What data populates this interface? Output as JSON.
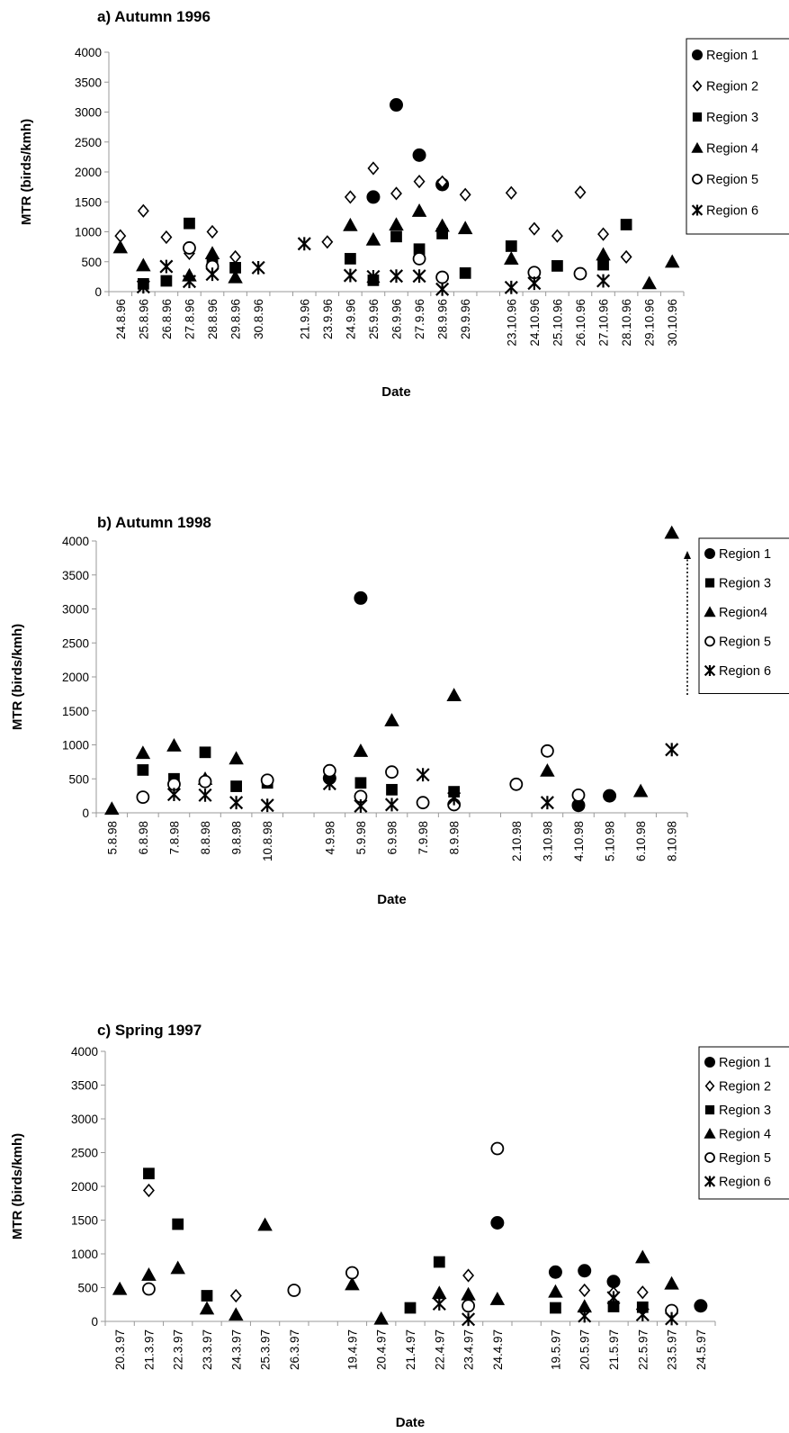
{
  "chart_data": [
    {
      "type": "scatter",
      "title": "a) Autumn 1996",
      "xlabel": "Date",
      "ylabel": "MTR (birds/kmh)",
      "ylim": [
        0,
        4000
      ],
      "yticks": [
        "0",
        "500",
        "1000",
        "1500",
        "2000",
        "2500",
        "3000",
        "3500",
        "4000"
      ],
      "categories": [
        "24.8.96",
        "25.8.96",
        "26.8.96",
        "27.8.96",
        "28.8.96",
        "29.8.96",
        "30.8.96",
        "",
        "21.9.96",
        "23.9.96",
        "24.9.96",
        "25.9.96",
        "26.9.96",
        "27.9.96",
        "28.9.96",
        "29.9.96",
        "",
        "23.10.96",
        "24.10.96",
        "25.10.96",
        "26.10.96",
        "27.10.96",
        "28.10.96",
        "29.10.96",
        "30.10.96"
      ],
      "legend": "top-right",
      "series": [
        {
          "name": "Region 1",
          "marker": "circle",
          "points": [
            [
              11,
              1580
            ],
            [
              12,
              3120
            ],
            [
              13,
              2280
            ],
            [
              14,
              1790
            ]
          ]
        },
        {
          "name": "Region 2",
          "marker": "diamond",
          "points": [
            [
              0,
              930
            ],
            [
              1,
              1350
            ],
            [
              2,
              910
            ],
            [
              3,
              640
            ],
            [
              4,
              1000
            ],
            [
              5,
              580
            ],
            [
              9,
              830
            ],
            [
              10,
              1580
            ],
            [
              11,
              2060
            ],
            [
              12,
              1640
            ],
            [
              13,
              1840
            ],
            [
              14,
              1830
            ],
            [
              15,
              1620
            ],
            [
              17,
              1650
            ],
            [
              18,
              1050
            ],
            [
              19,
              930
            ],
            [
              20,
              1660
            ],
            [
              21,
              960
            ],
            [
              22,
              580
            ]
          ]
        },
        {
          "name": "Region 3",
          "marker": "square",
          "points": [
            [
              1,
              130
            ],
            [
              2,
              180
            ],
            [
              3,
              1140
            ],
            [
              4,
              480
            ],
            [
              5,
              400
            ],
            [
              10,
              550
            ],
            [
              11,
              190
            ],
            [
              12,
              920
            ],
            [
              13,
              710
            ],
            [
              14,
              970
            ],
            [
              15,
              310
            ],
            [
              17,
              760
            ],
            [
              19,
              430
            ],
            [
              21,
              450
            ],
            [
              22,
              1120
            ]
          ]
        },
        {
          "name": "Region 4",
          "marker": "triangle",
          "points": [
            [
              0,
              740
            ],
            [
              1,
              440
            ],
            [
              3,
              270
            ],
            [
              4,
              640
            ],
            [
              5,
              240
            ],
            [
              10,
              1110
            ],
            [
              11,
              870
            ],
            [
              12,
              1120
            ],
            [
              13,
              1350
            ],
            [
              14,
              1100
            ],
            [
              15,
              1060
            ],
            [
              17,
              550
            ],
            [
              21,
              620
            ],
            [
              23,
              140
            ],
            [
              24,
              500
            ]
          ]
        },
        {
          "name": "Region 5",
          "marker": "open-circle",
          "points": [
            [
              3,
              730
            ],
            [
              4,
              420
            ],
            [
              13,
              550
            ],
            [
              14,
              240
            ],
            [
              18,
              320
            ],
            [
              20,
              300
            ]
          ]
        },
        {
          "name": "Region 6",
          "marker": "star",
          "points": [
            [
              1,
              80
            ],
            [
              2,
              420
            ],
            [
              3,
              170
            ],
            [
              4,
              290
            ],
            [
              6,
              400
            ],
            [
              8,
              800
            ],
            [
              10,
              270
            ],
            [
              11,
              250
            ],
            [
              12,
              260
            ],
            [
              13,
              260
            ],
            [
              14,
              40
            ],
            [
              17,
              70
            ],
            [
              18,
              140
            ],
            [
              21,
              180
            ]
          ]
        }
      ]
    },
    {
      "type": "scatter",
      "title": "b) Autumn 1998",
      "xlabel": "Date",
      "ylabel": "MTR (birds/kmh)",
      "ylim": [
        0,
        4000
      ],
      "yticks": [
        "0",
        "500",
        "1000",
        "1500",
        "2000",
        "2500",
        "3000",
        "3500",
        "4000"
      ],
      "categories": [
        "5.8.98",
        "6.8.98",
        "7.8.98",
        "8.8.98",
        "9.8.98",
        "10.8.98",
        "",
        "4.9.98",
        "5.9.98",
        "6.9.98",
        "7.9.98",
        "8.9.98",
        "",
        "2.10.98",
        "3.10.98",
        "4.10.98",
        "5.10.98",
        "6.10.98",
        "8.10.98"
      ],
      "legend": "top-right",
      "series": [
        {
          "name": "Region 1",
          "marker": "circle",
          "points": [
            [
              7,
              510
            ],
            [
              8,
              3160
            ],
            [
              15,
              110
            ],
            [
              16,
              250
            ]
          ]
        },
        {
          "name": "Region 3",
          "marker": "square",
          "points": [
            [
              1,
              630
            ],
            [
              2,
              500
            ],
            [
              3,
              890
            ],
            [
              4,
              390
            ],
            [
              5,
              440
            ],
            [
              8,
              440
            ],
            [
              9,
              340
            ],
            [
              11,
              310
            ]
          ]
        },
        {
          "name": "Region4",
          "marker": "triangle",
          "points": [
            [
              0,
              60
            ],
            [
              1,
              880
            ],
            [
              2,
              990
            ],
            [
              3,
              500
            ],
            [
              4,
              800
            ],
            [
              8,
              910
            ],
            [
              9,
              1360
            ],
            [
              11,
              1730
            ],
            [
              14,
              620
            ],
            [
              17,
              320
            ],
            [
              18,
              4120
            ]
          ]
        },
        {
          "name": "Region 5",
          "marker": "open-circle",
          "points": [
            [
              1,
              230
            ],
            [
              2,
              420
            ],
            [
              3,
              460
            ],
            [
              5,
              480
            ],
            [
              7,
              620
            ],
            [
              8,
              240
            ],
            [
              9,
              600
            ],
            [
              10,
              150
            ],
            [
              11,
              120
            ],
            [
              13,
              420
            ],
            [
              14,
              910
            ],
            [
              15,
              260
            ]
          ]
        },
        {
          "name": "Region 6",
          "marker": "star",
          "points": [
            [
              2,
              270
            ],
            [
              3,
              260
            ],
            [
              4,
              150
            ],
            [
              5,
              110
            ],
            [
              7,
              430
            ],
            [
              8,
              100
            ],
            [
              9,
              120
            ],
            [
              10,
              560
            ],
            [
              11,
              210
            ],
            [
              14,
              150
            ],
            [
              18,
              930
            ]
          ]
        }
      ]
    },
    {
      "type": "scatter",
      "title": "c) Spring 1997",
      "xlabel": "Date",
      "ylabel": "MTR (birds/kmh)",
      "ylim": [
        0,
        4000
      ],
      "yticks": [
        "0",
        "500",
        "1000",
        "1500",
        "2000",
        "2500",
        "3000",
        "3500",
        "4000"
      ],
      "categories": [
        "20.3.97",
        "21.3.97",
        "22.3.97",
        "23.3.97",
        "24.3.97",
        "25.3.97",
        "26.3.97",
        "",
        "19.4.97",
        "20.4.97",
        "21.4.97",
        "22.4.97",
        "23.4.97",
        "24.4.97",
        "",
        "19.5.97",
        "20.5.97",
        "21.5.97",
        "22.5.97",
        "23.5.97",
        "24.5.97"
      ],
      "legend": "top-right",
      "series": [
        {
          "name": "Region 1",
          "marker": "circle",
          "points": [
            [
              13,
              1460
            ],
            [
              15,
              730
            ],
            [
              16,
              750
            ],
            [
              17,
              590
            ],
            [
              20,
              230
            ]
          ]
        },
        {
          "name": "Region 2",
          "marker": "diamond",
          "points": [
            [
              1,
              1940
            ],
            [
              4,
              380
            ],
            [
              12,
              680
            ],
            [
              16,
              460
            ],
            [
              17,
              420
            ],
            [
              18,
              430
            ]
          ]
        },
        {
          "name": "Region 3",
          "marker": "square",
          "points": [
            [
              1,
              2190
            ],
            [
              2,
              1440
            ],
            [
              3,
              380
            ],
            [
              10,
              200
            ],
            [
              11,
              880
            ],
            [
              15,
              200
            ],
            [
              17,
              220
            ],
            [
              18,
              210
            ]
          ]
        },
        {
          "name": "Region 4",
          "marker": "triangle",
          "points": [
            [
              0,
              480
            ],
            [
              1,
              690
            ],
            [
              2,
              790
            ],
            [
              3,
              190
            ],
            [
              4,
              100
            ],
            [
              5,
              1430
            ],
            [
              8,
              550
            ],
            [
              9,
              40
            ],
            [
              11,
              420
            ],
            [
              12,
              400
            ],
            [
              13,
              330
            ],
            [
              15,
              440
            ],
            [
              16,
              220
            ],
            [
              18,
              950
            ],
            [
              19,
              560
            ]
          ]
        },
        {
          "name": "Region 5",
          "marker": "open-circle",
          "points": [
            [
              1,
              480
            ],
            [
              6,
              460
            ],
            [
              8,
              720
            ],
            [
              12,
              230
            ],
            [
              13,
              2560
            ],
            [
              19,
              160
            ]
          ]
        },
        {
          "name": "Region 6",
          "marker": "star",
          "points": [
            [
              11,
              260
            ],
            [
              12,
              30
            ],
            [
              16,
              80
            ],
            [
              17,
              350
            ],
            [
              18,
              100
            ],
            [
              19,
              40
            ]
          ]
        }
      ]
    }
  ]
}
